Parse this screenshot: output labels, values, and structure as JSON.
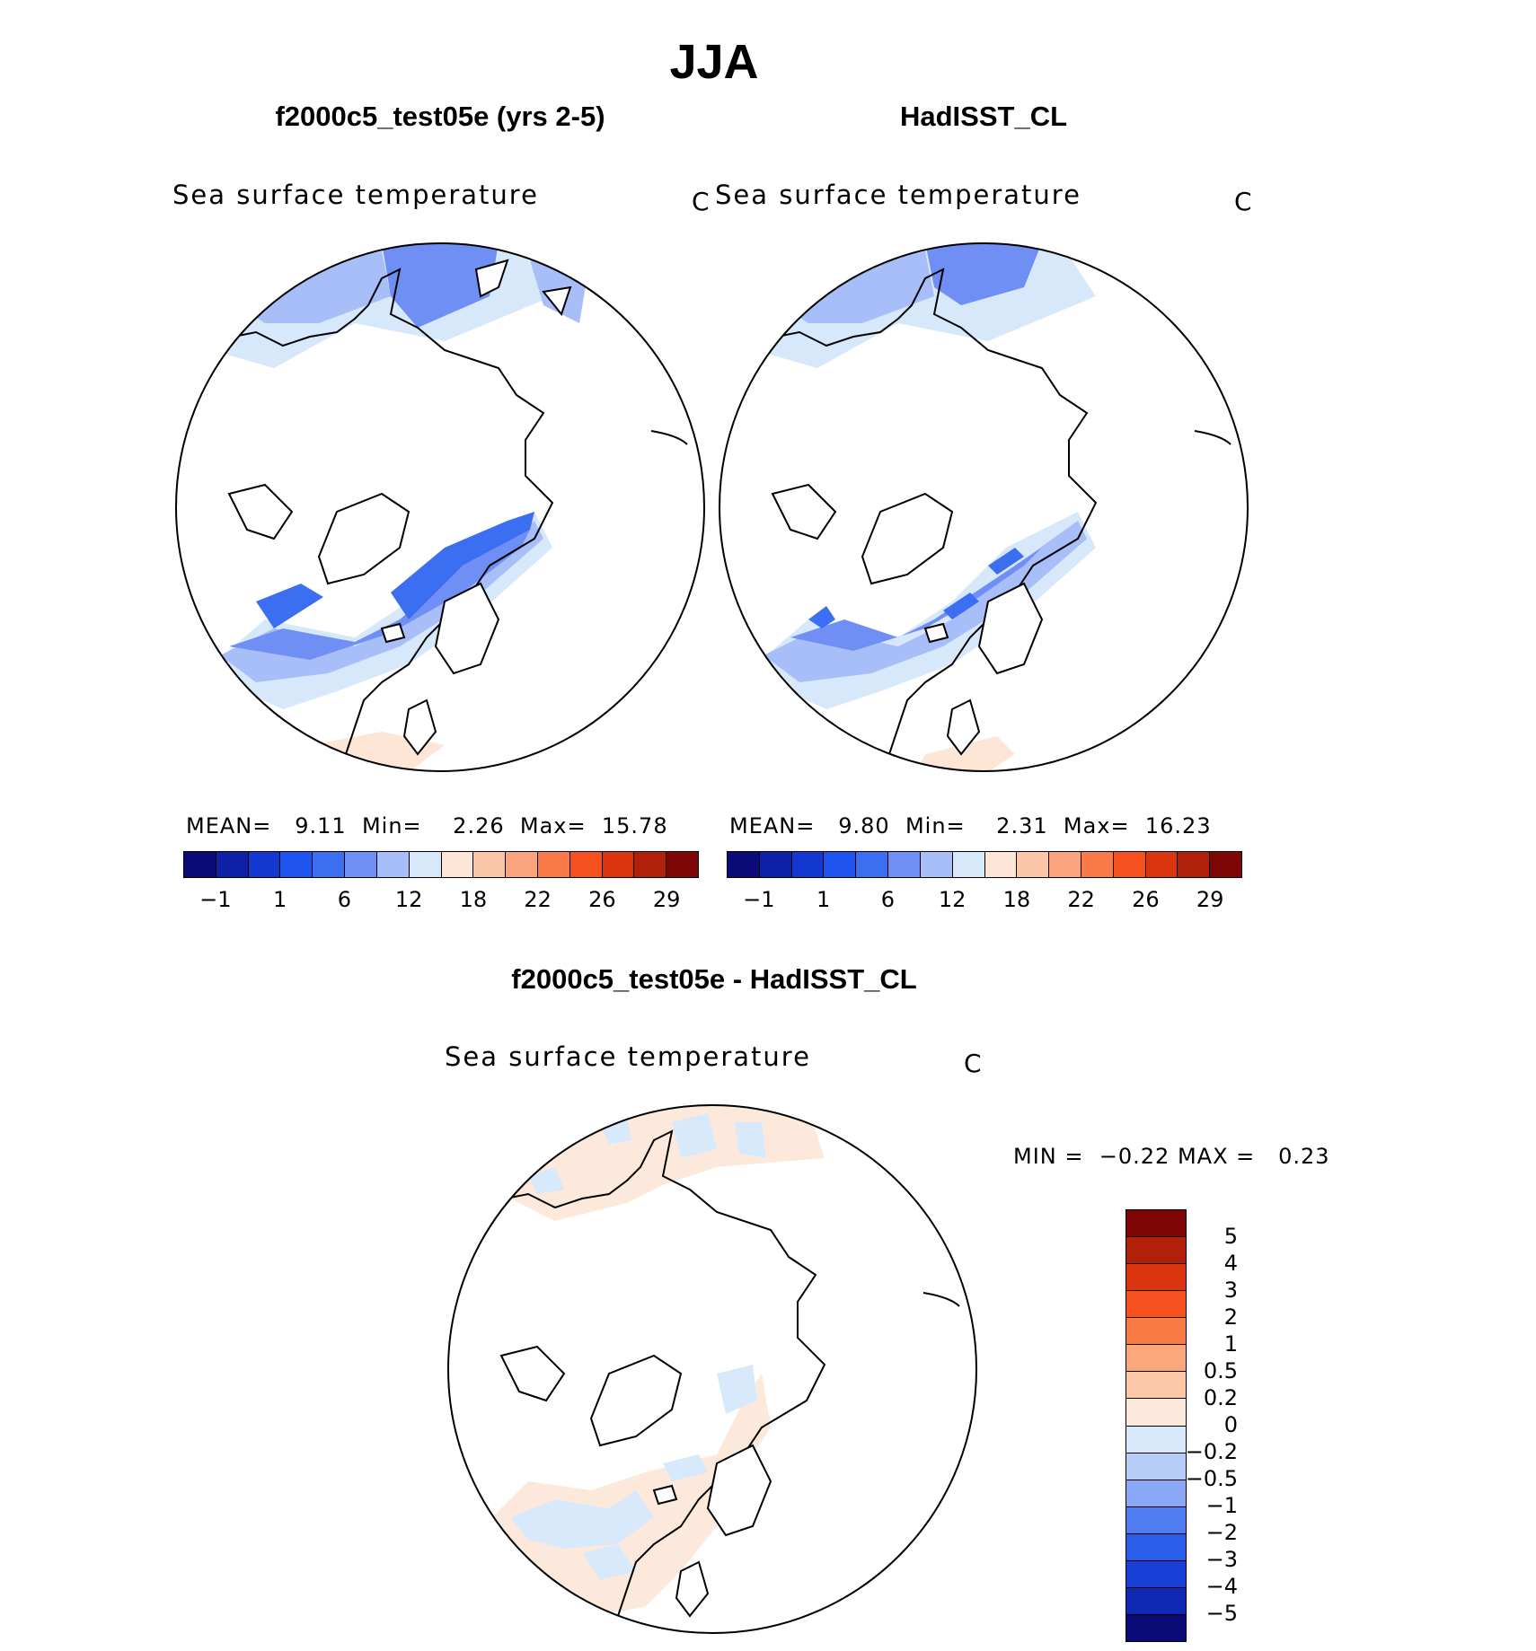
{
  "title": "JJA",
  "panels": [
    {
      "subtitle": "f2000c5_test05e (yrs 2-5)",
      "variable": "Sea surface temperature",
      "unit": "C",
      "stats": {
        "mean_label": "MEAN=",
        "mean": "9.11",
        "min_label": "Min=",
        "min": "2.26",
        "max_label": "Max=",
        "max": "15.78"
      }
    },
    {
      "subtitle": "HadISST_CL",
      "variable": "Sea surface temperature",
      "unit": "C",
      "stats": {
        "mean_label": "MEAN=",
        "mean": "9.80",
        "min_label": "Min=",
        "min": "2.31",
        "max_label": "Max=",
        "max": "16.23"
      }
    }
  ],
  "diff_panel": {
    "subtitle": "f2000c5_test05e - HadISST_CL",
    "variable": "Sea surface temperature",
    "unit": "C",
    "stats": {
      "min_label": "MIN =",
      "min": "−0.22",
      "max_label": "MAX =",
      "max": "0.23"
    }
  },
  "colorbar_sst": {
    "colors": [
      "#0a0a78",
      "#0e1fa8",
      "#1238d0",
      "#1e55f0",
      "#3c6ef2",
      "#6f8ff4",
      "#a8bef8",
      "#d8e8fb",
      "#fde6d6",
      "#fcc6a8",
      "#fba37c",
      "#f97a48",
      "#f5501e",
      "#db3510",
      "#b0200a",
      "#7e0606"
    ],
    "labels": [
      "−1",
      "1",
      "6",
      "12",
      "18",
      "22",
      "26",
      "29"
    ]
  },
  "colorbar_diff": {
    "colors": [
      "#7e0606",
      "#b0200a",
      "#db3510",
      "#f5501e",
      "#fa7c44",
      "#fba77e",
      "#fcc8a8",
      "#fde9dc",
      "#d8e9fb",
      "#b6cdf8",
      "#8aa8f5",
      "#4f7cf0",
      "#2b5ee8",
      "#1840d6",
      "#1029b4",
      "#0a0a78"
    ],
    "labels": [
      "5",
      "4",
      "3",
      "2",
      "1",
      "0.5",
      "0.2",
      "0",
      "−0.2",
      "−0.5",
      "−1",
      "−2",
      "−3",
      "−4",
      "−5"
    ]
  }
}
